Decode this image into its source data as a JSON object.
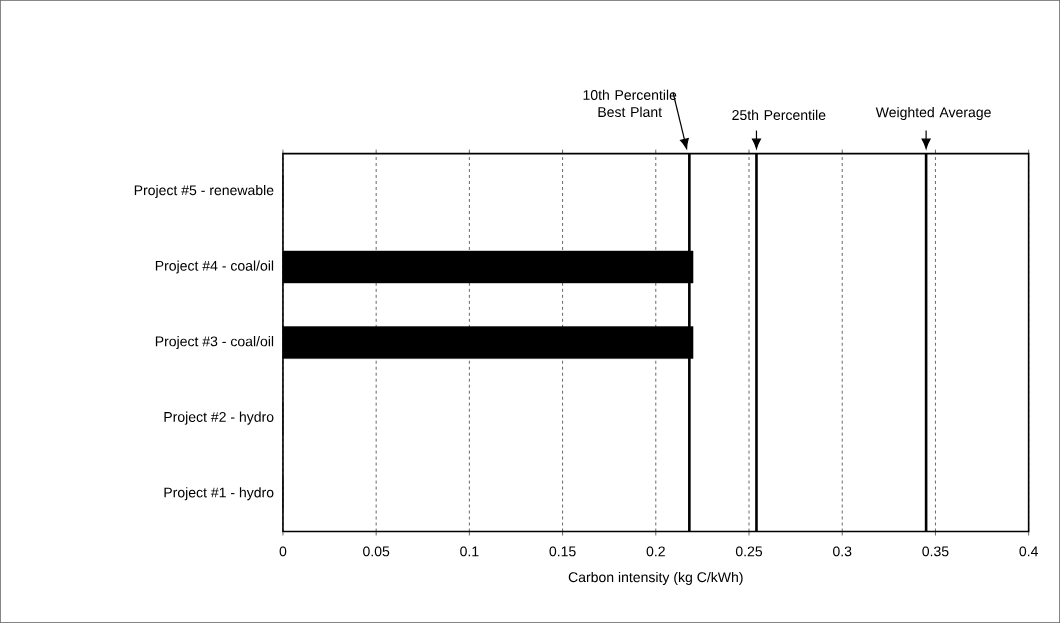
{
  "chart_data": {
    "type": "bar",
    "orientation": "horizontal",
    "categories": [
      "Project #5 - renewable",
      "Project #4 - coal/oil",
      "Project #3 - coal/oil",
      "Project #2 - hydro",
      "Project #1 - hydro"
    ],
    "values": [
      0,
      0.22,
      0.22,
      0,
      0
    ],
    "color": "#000000",
    "xlabel": "Carbon intensity (kg C/kWh)",
    "xlim": [
      0,
      0.4
    ],
    "xticks": [
      0,
      0.05,
      0.1,
      0.15,
      0.2,
      0.25,
      0.3,
      0.35,
      0.4
    ],
    "grid": "x",
    "ref_lines": [
      {
        "axis": "x",
        "value": 0.218,
        "label": "10th Percentile Best Plant"
      },
      {
        "axis": "x",
        "value": 0.254,
        "label": "25th Percentile"
      },
      {
        "axis": "x",
        "value": 0.345,
        "label": "Weighted Average"
      }
    ]
  }
}
